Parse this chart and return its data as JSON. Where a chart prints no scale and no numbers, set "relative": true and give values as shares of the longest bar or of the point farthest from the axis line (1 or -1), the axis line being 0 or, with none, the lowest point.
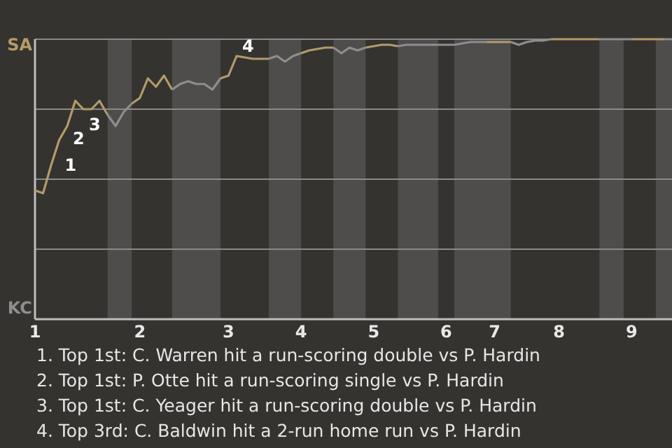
{
  "chart_data": {
    "type": "line",
    "relative": true,
    "categories": [
      "1",
      null,
      null,
      null,
      null,
      null,
      null,
      null,
      null,
      null,
      null,
      null,
      null,
      "2",
      null,
      null,
      null,
      null,
      null,
      null,
      null,
      null,
      null,
      null,
      "3",
      null,
      null,
      null,
      null,
      null,
      null,
      null,
      null,
      "4",
      null,
      null,
      null,
      null,
      null,
      null,
      null,
      null,
      "5",
      null,
      null,
      null,
      null,
      null,
      null,
      null,
      null,
      "6",
      null,
      null,
      null,
      null,
      null,
      "7",
      null,
      null,
      null,
      null,
      null,
      null,
      null,
      "8",
      null,
      null,
      null,
      null,
      null,
      null,
      null,
      null,
      "9",
      null,
      null,
      null,
      null,
      null
    ],
    "grid": "y",
    "marker": "none",
    "line_style": "solid",
    "series": [
      {
        "color": "#b39b6a",
        "values": [
          0.46,
          0.45,
          0.55,
          0.64,
          0.69,
          0.78,
          0.75,
          0.75,
          0.78,
          0.73,
          null,
          null,
          0.77,
          0.79,
          0.86,
          0.83,
          0.87,
          0.82,
          null,
          null,
          null,
          null,
          null,
          0.86,
          0.87,
          0.94,
          0.935,
          0.93,
          0.93,
          0.93,
          null,
          null,
          null,
          0.95,
          0.96,
          0.965,
          0.97,
          0.97,
          null,
          null,
          null,
          0.97,
          0.975,
          0.98,
          0.98,
          0.975,
          null,
          null,
          null,
          null,
          null,
          null,
          null,
          null,
          null,
          null,
          0.99,
          0.99,
          0.99,
          0.99,
          null,
          null,
          null,
          null,
          1,
          1,
          1,
          1,
          1,
          1,
          1,
          null,
          null,
          null,
          1,
          1,
          1,
          1,
          1,
          null
        ]
      },
      {
        "color": "#8d8e90",
        "values": [
          null,
          null,
          null,
          null,
          null,
          null,
          null,
          null,
          null,
          0.73,
          0.69,
          0.74,
          0.77,
          null,
          null,
          null,
          null,
          0.82,
          0.84,
          0.85,
          0.84,
          0.84,
          0.82,
          0.86,
          null,
          null,
          null,
          null,
          null,
          0.93,
          0.94,
          0.92,
          0.94,
          0.95,
          null,
          null,
          null,
          0.97,
          0.95,
          0.97,
          0.96,
          0.97,
          null,
          null,
          null,
          0.975,
          0.98,
          0.98,
          0.98,
          0.98,
          0.98,
          0.98,
          0.98,
          0.985,
          0.99,
          0.99,
          0.99,
          null,
          null,
          0.99,
          0.98,
          0.99,
          0.995,
          0.995,
          1,
          null,
          null,
          null,
          null,
          null,
          1,
          1,
          1,
          1,
          1,
          null,
          null,
          null,
          1,
          1
        ]
      }
    ],
    "annotations": [
      "SA",
      "KC",
      "1",
      "2",
      "3",
      "4",
      "1. Top 1st: C. Warren hit a run-scoring double vs P. Hardin",
      "2. Top 1st: P. Otte hit a run-scoring single vs P. Hardin",
      "3. Top 1st: C. Yeager hit a run-scoring double vs P. Hardin",
      "4. Top 3rd: C. Baldwin hit a 2-run home run vs P. Hardin"
    ]
  }
}
